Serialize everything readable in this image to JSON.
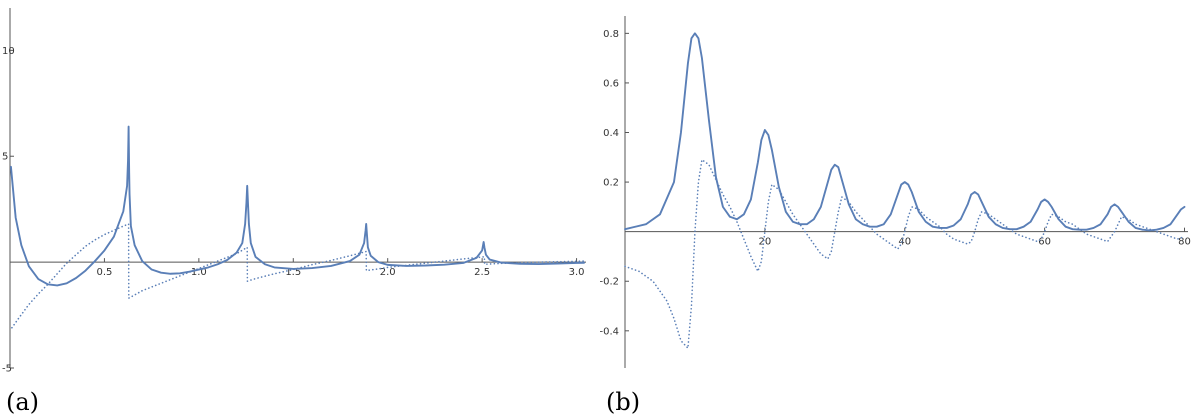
{
  "colors": {
    "series": "#5a7fb7",
    "axis": "#555555",
    "text": "#333333",
    "background": "#ffffff"
  },
  "panels": [
    {
      "label": "(a)"
    },
    {
      "label": "(b)"
    }
  ],
  "chart_data": [
    {
      "type": "line",
      "title": "",
      "xlabel": "",
      "ylabel": "",
      "xlim": [
        0,
        3.05
      ],
      "ylim": [
        -5,
        12
      ],
      "xticks": [
        0.5,
        1.0,
        1.5,
        2.0,
        2.5,
        3.0
      ],
      "xtick_labels": [
        "0.5",
        "1.0",
        "1.5",
        "2.0",
        "2.5",
        "3.0"
      ],
      "yticks": [
        -5,
        5,
        10
      ],
      "ytick_labels": [
        "-5",
        "5",
        "10"
      ],
      "grid": false,
      "legend": "none",
      "series": [
        {
          "style": "solid",
          "x": [
            0.005,
            0.03,
            0.06,
            0.1,
            0.15,
            0.2,
            0.25,
            0.3,
            0.35,
            0.4,
            0.45,
            0.5,
            0.55,
            0.6,
            0.62,
            0.625,
            0.627,
            0.628,
            0.629,
            0.631,
            0.633,
            0.64,
            0.66,
            0.7,
            0.75,
            0.8,
            0.85,
            0.9,
            0.95,
            1.0,
            1.05,
            1.1,
            1.15,
            1.2,
            1.23,
            1.245,
            1.252,
            1.256,
            1.26,
            1.265,
            1.275,
            1.3,
            1.35,
            1.4,
            1.5,
            1.6,
            1.7,
            1.8,
            1.85,
            1.875,
            1.883,
            1.886,
            1.89,
            1.895,
            1.91,
            1.95,
            2.0,
            2.1,
            2.2,
            2.3,
            2.4,
            2.47,
            2.5,
            2.508,
            2.512,
            2.52,
            2.54,
            2.6,
            2.7,
            2.8,
            2.9,
            3.0,
            3.04
          ],
          "y": [
            4.5,
            2.1,
            0.8,
            -0.2,
            -0.8,
            -1.05,
            -1.1,
            -1.0,
            -0.75,
            -0.4,
            0.05,
            0.55,
            1.2,
            2.4,
            3.6,
            4.8,
            5.8,
            6.4,
            5.6,
            4.2,
            3.2,
            1.7,
            0.8,
            0.05,
            -0.35,
            -0.5,
            -0.55,
            -0.53,
            -0.45,
            -0.35,
            -0.25,
            -0.1,
            0.1,
            0.45,
            0.9,
            1.8,
            2.8,
            3.6,
            2.8,
            1.8,
            0.9,
            0.25,
            -0.1,
            -0.25,
            -0.32,
            -0.28,
            -0.18,
            0.05,
            0.35,
            0.9,
            1.5,
            1.8,
            1.3,
            0.7,
            0.3,
            0.0,
            -0.13,
            -0.18,
            -0.16,
            -0.12,
            -0.04,
            0.2,
            0.55,
            0.95,
            0.7,
            0.35,
            0.12,
            -0.02,
            -0.08,
            -0.09,
            -0.07,
            -0.04,
            -0.03
          ]
        },
        {
          "style": "dotted",
          "x": [
            0.01,
            0.05,
            0.1,
            0.15,
            0.2,
            0.25,
            0.3,
            0.35,
            0.4,
            0.45,
            0.5,
            0.55,
            0.6,
            0.628,
            0.629,
            0.65,
            0.7,
            0.8,
            0.9,
            1.0,
            1.1,
            1.2,
            1.256,
            1.257,
            1.3,
            1.4,
            1.5,
            1.6,
            1.7,
            1.8,
            1.886,
            1.887,
            1.95,
            2.0,
            2.1,
            2.2,
            2.3,
            2.4,
            2.512,
            2.513,
            2.6,
            2.7,
            2.8,
            2.9,
            3.0,
            3.04
          ],
          "y": [
            -3.1,
            -2.6,
            -2.0,
            -1.5,
            -1.05,
            -0.55,
            -0.05,
            0.35,
            0.75,
            1.05,
            1.3,
            1.5,
            1.7,
            1.8,
            -1.7,
            -1.6,
            -1.35,
            -1.0,
            -0.65,
            -0.3,
            0.05,
            0.4,
            0.7,
            -0.9,
            -0.78,
            -0.55,
            -0.35,
            -0.12,
            0.08,
            0.3,
            0.5,
            -0.4,
            -0.32,
            -0.25,
            -0.15,
            -0.05,
            0.05,
            0.15,
            0.25,
            -0.1,
            -0.06,
            -0.03,
            0.0,
            0.02,
            0.04,
            0.05
          ]
        }
      ]
    },
    {
      "type": "line",
      "title": "",
      "xlabel": "",
      "ylabel": "",
      "xlim": [
        0,
        80.5
      ],
      "ylim": [
        -0.55,
        0.87
      ],
      "xticks": [
        20,
        40,
        60,
        80
      ],
      "xtick_labels": [
        "20",
        "40",
        "60",
        "80"
      ],
      "yticks": [
        -0.4,
        -0.2,
        0.2,
        0.4,
        0.6,
        0.8
      ],
      "ytick_labels": [
        "-0.4",
        "-0.2",
        "0.2",
        "0.4",
        "0.6",
        "0.8"
      ],
      "grid": false,
      "legend": "none",
      "series": [
        {
          "style": "solid",
          "x": [
            0,
            3,
            5,
            7,
            8,
            9,
            9.5,
            10,
            10.5,
            11,
            12,
            13,
            14,
            15,
            16,
            17,
            18,
            19,
            19.5,
            20,
            20.5,
            21,
            22,
            23,
            24,
            25,
            26,
            27,
            28,
            29,
            29.5,
            30,
            30.5,
            31,
            32,
            33,
            34,
            35,
            36,
            37,
            38,
            39,
            39.5,
            40,
            40.5,
            41,
            42,
            43,
            44,
            45,
            46,
            47,
            48,
            49,
            49.5,
            50,
            50.5,
            51,
            52,
            53,
            54,
            55,
            56,
            57,
            58,
            59,
            59.5,
            60,
            60.5,
            61,
            62,
            63,
            64,
            65,
            66,
            67,
            68,
            69,
            69.5,
            70,
            70.5,
            71,
            72,
            73,
            74,
            75,
            76,
            77,
            78,
            79,
            79.5,
            80
          ],
          "y": [
            0.01,
            0.03,
            0.07,
            0.2,
            0.4,
            0.68,
            0.78,
            0.8,
            0.78,
            0.7,
            0.45,
            0.22,
            0.1,
            0.06,
            0.05,
            0.07,
            0.13,
            0.28,
            0.37,
            0.41,
            0.39,
            0.33,
            0.18,
            0.08,
            0.04,
            0.03,
            0.03,
            0.05,
            0.1,
            0.2,
            0.25,
            0.27,
            0.26,
            0.21,
            0.11,
            0.05,
            0.03,
            0.02,
            0.02,
            0.03,
            0.07,
            0.15,
            0.19,
            0.2,
            0.19,
            0.16,
            0.08,
            0.04,
            0.02,
            0.015,
            0.015,
            0.025,
            0.05,
            0.11,
            0.15,
            0.16,
            0.15,
            0.12,
            0.06,
            0.03,
            0.015,
            0.01,
            0.01,
            0.02,
            0.04,
            0.09,
            0.12,
            0.13,
            0.12,
            0.1,
            0.05,
            0.02,
            0.01,
            0.008,
            0.008,
            0.015,
            0.03,
            0.07,
            0.1,
            0.11,
            0.1,
            0.08,
            0.04,
            0.015,
            0.008,
            0.005,
            0.008,
            0.015,
            0.03,
            0.07,
            0.09,
            0.1
          ]
        },
        {
          "style": "dotted",
          "x": [
            0,
            2,
            4,
            6,
            7,
            8,
            9,
            9.5,
            10,
            10.5,
            11,
            12,
            13,
            14,
            15,
            16,
            17,
            18,
            19,
            19.5,
            20,
            20.5,
            21,
            22,
            23,
            24,
            25,
            26,
            27,
            28,
            29,
            29.5,
            30,
            30.5,
            31,
            32,
            33,
            34,
            35,
            36,
            37,
            38,
            39,
            39.5,
            40,
            40.5,
            41,
            42,
            43,
            44,
            45,
            46,
            47,
            48,
            49,
            49.5,
            50,
            50.5,
            51,
            52,
            53,
            54,
            55,
            56,
            57,
            58,
            59,
            59.5,
            60,
            60.5,
            61,
            62,
            63,
            64,
            65,
            66,
            67,
            68,
            69,
            69.5,
            70,
            70.5,
            71,
            72,
            73,
            74,
            75,
            76,
            77,
            78,
            79,
            80
          ],
          "y": [
            -0.14,
            -0.16,
            -0.2,
            -0.28,
            -0.35,
            -0.44,
            -0.47,
            -0.3,
            0.0,
            0.2,
            0.29,
            0.27,
            0.21,
            0.15,
            0.1,
            0.04,
            -0.03,
            -0.1,
            -0.16,
            -0.12,
            0.0,
            0.12,
            0.19,
            0.17,
            0.12,
            0.07,
            0.03,
            -0.01,
            -0.05,
            -0.09,
            -0.11,
            -0.08,
            0.0,
            0.08,
            0.14,
            0.12,
            0.08,
            0.05,
            0.02,
            -0.01,
            -0.03,
            -0.05,
            -0.07,
            -0.05,
            0.0,
            0.06,
            0.1,
            0.09,
            0.06,
            0.04,
            0.02,
            -0.01,
            -0.03,
            -0.04,
            -0.05,
            -0.04,
            0.0,
            0.05,
            0.08,
            0.07,
            0.05,
            0.03,
            0.01,
            -0.01,
            -0.02,
            -0.03,
            -0.04,
            -0.03,
            0.0,
            0.04,
            0.07,
            0.06,
            0.04,
            0.03,
            0.01,
            -0.01,
            -0.02,
            -0.03,
            -0.04,
            -0.02,
            0.0,
            0.03,
            0.06,
            0.05,
            0.03,
            0.02,
            0.01,
            0.0,
            -0.01,
            -0.02,
            -0.03,
            -0.02
          ]
        }
      ]
    }
  ]
}
